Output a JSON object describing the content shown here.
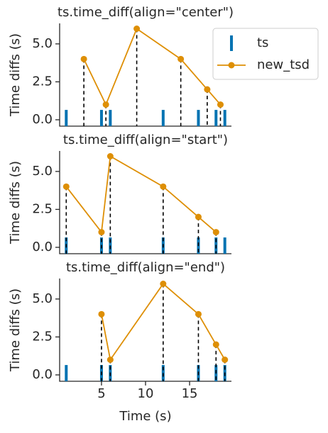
{
  "chart_data": [
    {
      "type": "line",
      "title": "ts.time_diff(align=\"center\")",
      "ylabel": "Time diffs (s)",
      "xlim": [
        0.25,
        19.75
      ],
      "ylim": [
        -0.42,
        6.35
      ],
      "yticks": [
        {
          "value": 0,
          "label": "0.0"
        },
        2.5,
        {
          "value": 5,
          "label": "5.0"
        }
      ],
      "legend": "upper right",
      "series": [
        {
          "name": "ts",
          "type": "event",
          "color": "#0173b2",
          "x": [
            1,
            5,
            6,
            12,
            16,
            18,
            19
          ]
        },
        {
          "name": "new_tsd",
          "color": "#de8f05",
          "x": [
            3,
            5.5,
            9,
            14,
            17,
            18.5
          ],
          "values": [
            4,
            1,
            6,
            4,
            2,
            1
          ]
        }
      ]
    },
    {
      "type": "line",
      "title": "ts.time_diff(align=\"start\")",
      "ylabel": "Time diffs (s)",
      "xlim": [
        0.25,
        19.75
      ],
      "ylim": [
        -0.42,
        6.35
      ],
      "yticks": [
        {
          "value": 0,
          "label": "0.0"
        },
        2.5,
        {
          "value": 5,
          "label": "5.0"
        }
      ],
      "series": [
        {
          "type": "event",
          "color": "#0173b2",
          "x": [
            1,
            5,
            6,
            12,
            16,
            18,
            19
          ]
        },
        {
          "color": "#de8f05",
          "x": [
            1,
            5,
            6,
            12,
            16,
            18
          ],
          "values": [
            4,
            1,
            6,
            4,
            2,
            1
          ]
        }
      ]
    },
    {
      "type": "line",
      "title": "ts.time_diff(align=\"end\")",
      "ylabel": "Time diffs (s)",
      "xlabel": "Time (s)",
      "xlim": [
        0.25,
        19.75
      ],
      "ylim": [
        -0.42,
        6.35
      ],
      "xticks": [
        5,
        10,
        15
      ],
      "yticks": [
        {
          "value": 0,
          "label": "0.0"
        },
        2.5,
        {
          "value": 5,
          "label": "5.0"
        }
      ],
      "series": [
        {
          "type": "event",
          "color": "#0173b2",
          "x": [
            1,
            5,
            6,
            12,
            16,
            18,
            19
          ]
        },
        {
          "color": "#de8f05",
          "x": [
            5,
            6,
            12,
            16,
            18,
            19
          ],
          "values": [
            4,
            1,
            6,
            4,
            2,
            1
          ]
        }
      ]
    }
  ]
}
